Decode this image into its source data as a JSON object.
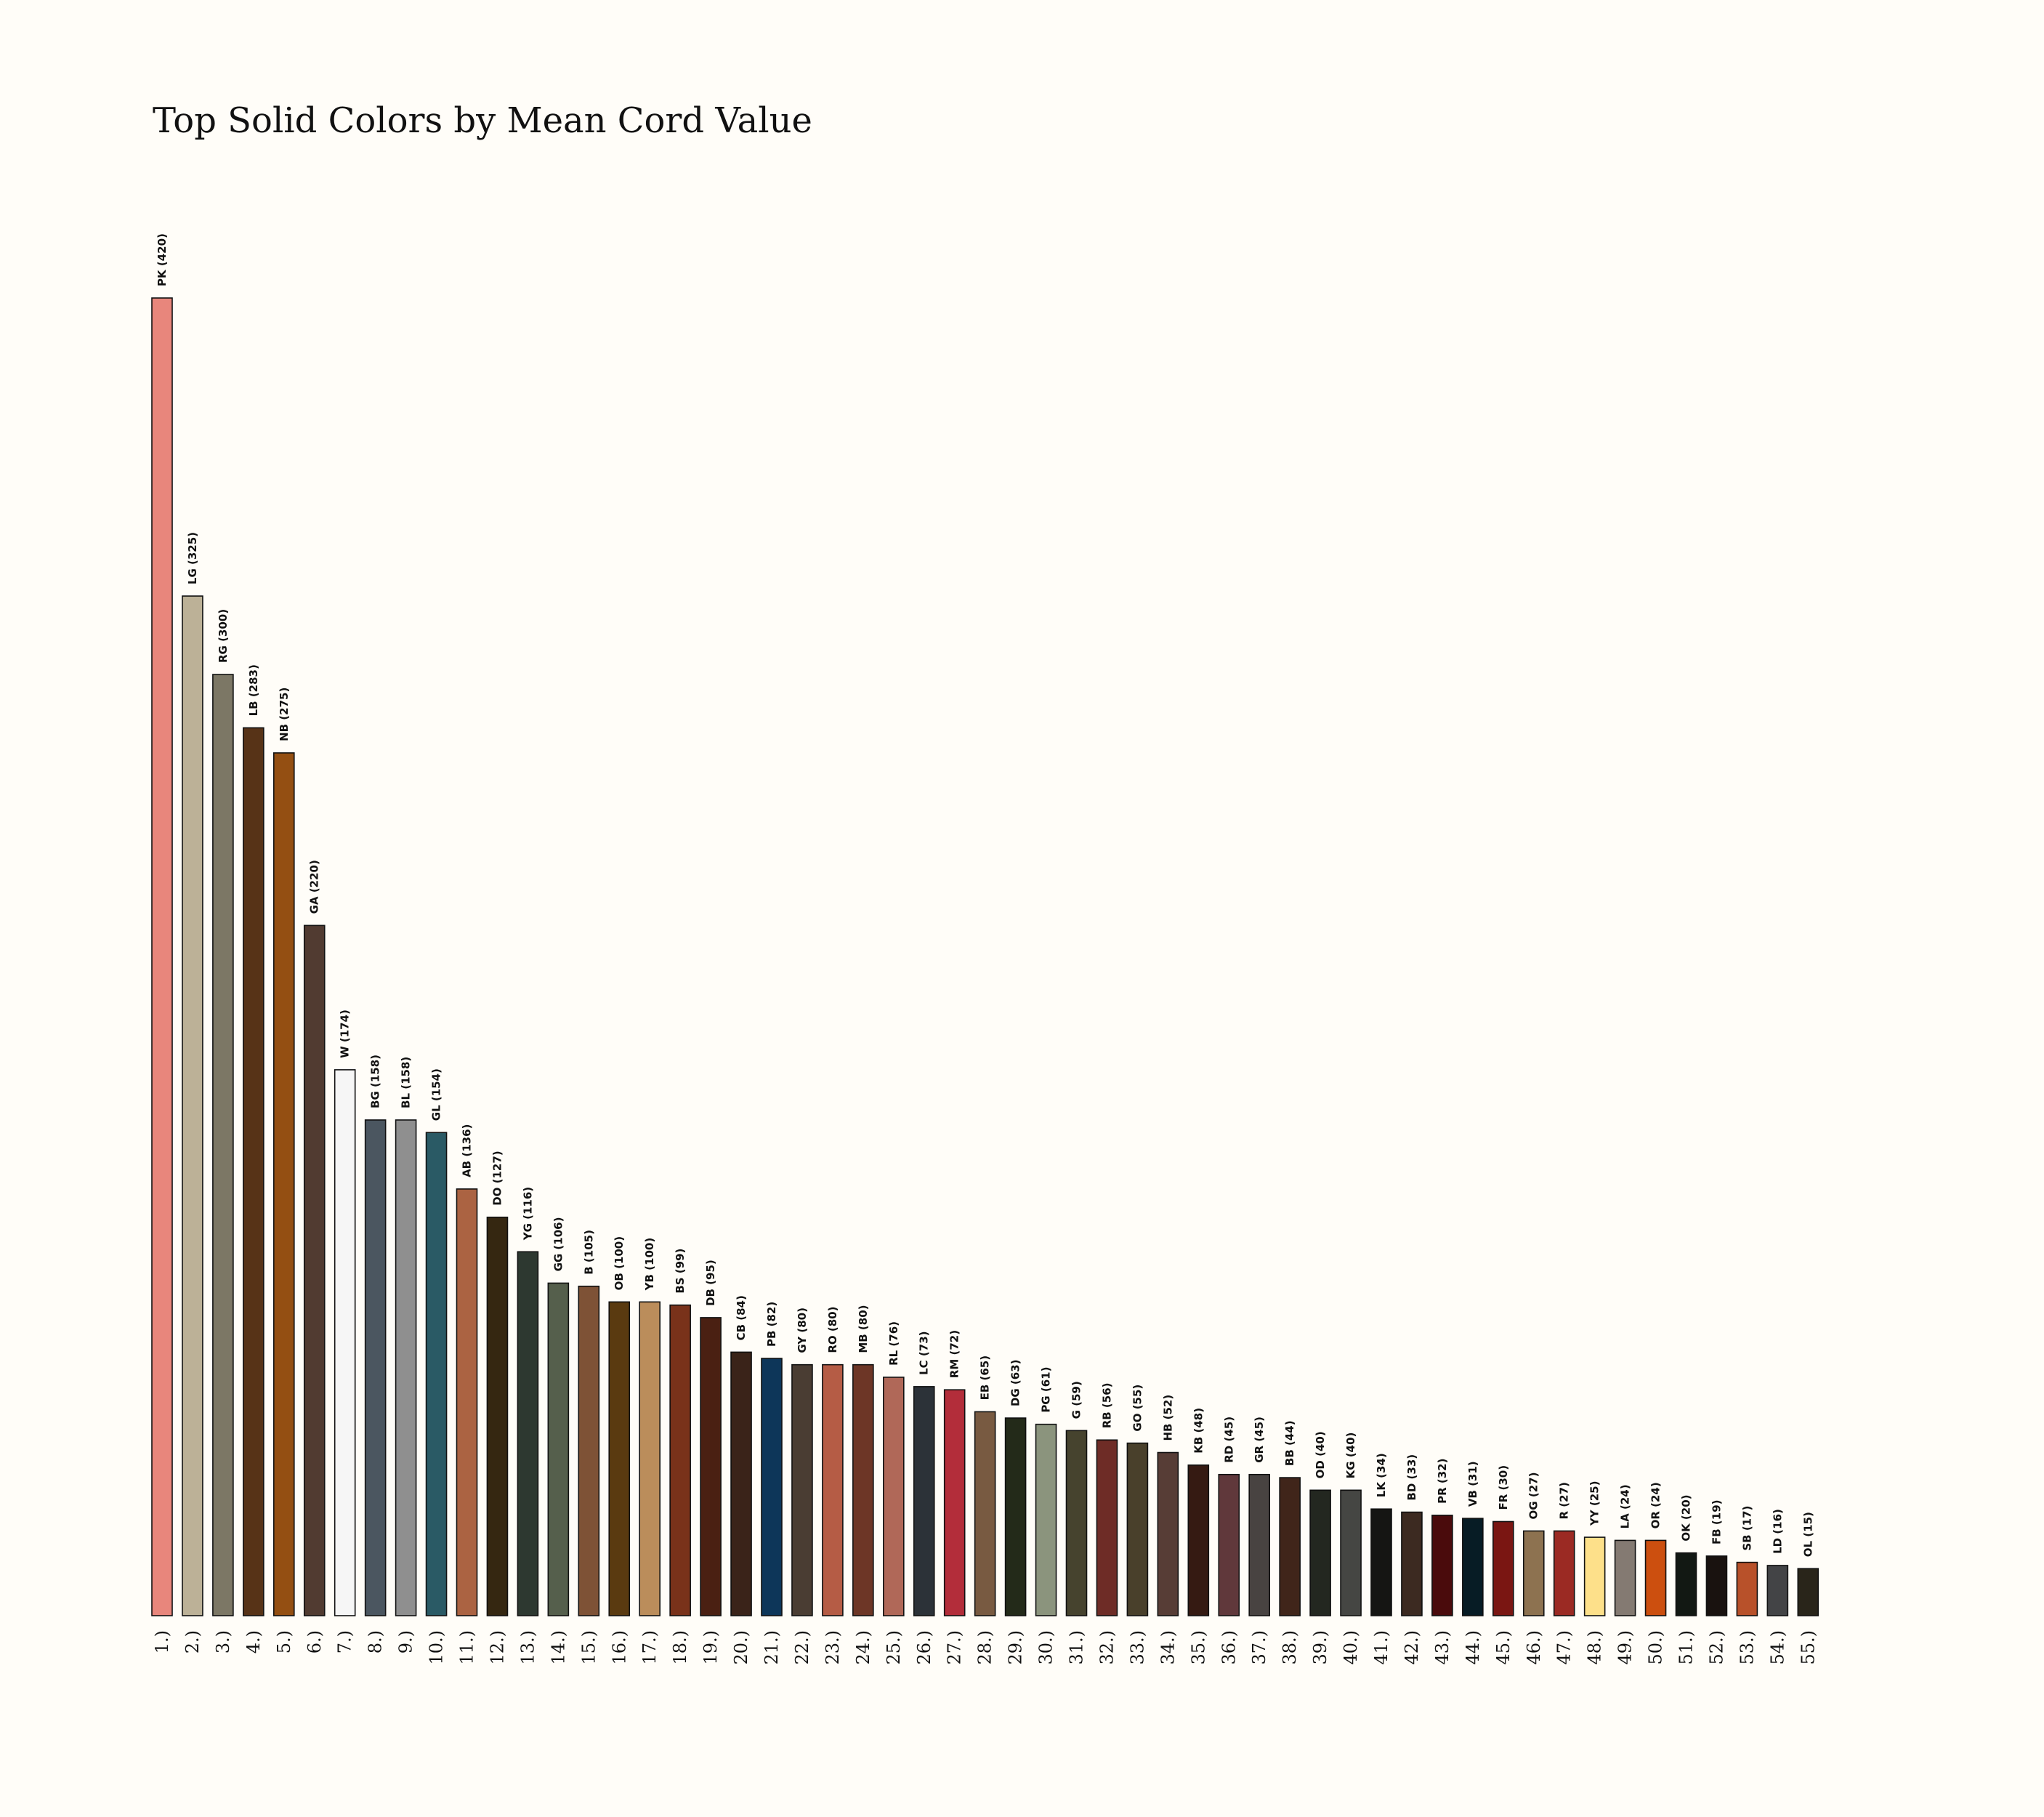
{
  "chart_data": {
    "type": "bar",
    "title": "Top Solid Colors by Mean Cord Value",
    "xlabel": "",
    "ylabel": "",
    "ylim": [
      0,
      420
    ],
    "grid": false,
    "legend": "none",
    "categories": [
      "1.)",
      "2.)",
      "3.)",
      "4.)",
      "5.)",
      "6.)",
      "7.)",
      "8.)",
      "9.)",
      "10.)",
      "11.)",
      "12.)",
      "13.)",
      "14.)",
      "15.)",
      "16.)",
      "17.)",
      "18.)",
      "19.)",
      "20.)",
      "21.)",
      "22.)",
      "23.)",
      "24.)",
      "25.)",
      "26.)",
      "27.)",
      "28.)",
      "29.)",
      "30.)",
      "31.)",
      "32.)",
      "33.)",
      "34.)",
      "35.)",
      "36.)",
      "37.)",
      "38.)",
      "39.)",
      "40.)",
      "41.)",
      "42.)",
      "43.)",
      "44.)",
      "45.)",
      "46.)",
      "47.)",
      "48.)",
      "49.)",
      "50.)",
      "51.)",
      "52.)",
      "53.)",
      "54.)",
      "55.)"
    ],
    "bar_labels": [
      "PK (420)",
      "LG (325)",
      "RG (300)",
      "LB (283)",
      "NB (275)",
      "GA (220)",
      "W (174)",
      "BG (158)",
      "BL (158)",
      "GL (154)",
      "AB (136)",
      "DO (127)",
      "YG (116)",
      "GG (106)",
      "B (105)",
      "OB (100)",
      "YB (100)",
      "BS (99)",
      "DB (95)",
      "CB (84)",
      "PB (82)",
      "GY (80)",
      "RO (80)",
      "MB (80)",
      "RL (76)",
      "LC (73)",
      "RM (72)",
      "EB (65)",
      "DG (63)",
      "PG (61)",
      "G (59)",
      "RB (56)",
      "GO (55)",
      "HB (52)",
      "KB (48)",
      "RD (45)",
      "GR (45)",
      "BB (44)",
      "OD (40)",
      "KG (40)",
      "LK (34)",
      "BD (33)",
      "PR (32)",
      "VB (31)",
      "FR (30)",
      "OG (27)",
      "R (27)",
      "YY (25)",
      "LA (24)",
      "OR (24)",
      "OK (20)",
      "FB (19)",
      "SB (17)",
      "LD (16)",
      "OL (15)"
    ],
    "values": [
      420,
      325,
      300,
      283,
      275,
      220,
      174,
      158,
      158,
      154,
      136,
      127,
      116,
      106,
      105,
      100,
      100,
      99,
      95,
      84,
      82,
      80,
      80,
      80,
      76,
      73,
      72,
      65,
      63,
      61,
      59,
      56,
      55,
      52,
      48,
      45,
      45,
      44,
      40,
      40,
      34,
      33,
      32,
      31,
      30,
      27,
      27,
      25,
      24,
      24,
      20,
      19,
      17,
      16,
      15
    ],
    "colors": [
      "#e8867c",
      "#bcb197",
      "#7c7765",
      "#573317",
      "#944f12",
      "#513b31",
      "#f6f6f6",
      "#4b5660",
      "#8f8f8f",
      "#2a5a65",
      "#ab6342",
      "#352711",
      "#2d3830",
      "#555f4c",
      "#7e5236",
      "#5a3a10",
      "#bb8d5b",
      "#79321a",
      "#4a2012",
      "#3a2319",
      "#0d3659",
      "#4a3d33",
      "#b55c45",
      "#6d3626",
      "#b06858",
      "#2c3238",
      "#b32d3a",
      "#785a41",
      "#232a19",
      "#8b947d",
      "#46432e",
      "#6e2c26",
      "#49402b",
      "#573d36",
      "#351a12",
      "#60383b",
      "#484341",
      "#40251a",
      "#232720",
      "#454643",
      "#151513",
      "#3c2a21",
      "#4a0b0c",
      "#071c25",
      "#7a1612",
      "#8d7250",
      "#9b2a23",
      "#fde08a",
      "#847a72",
      "#cc4f0f",
      "#121813",
      "#19120f",
      "#b8512a",
      "#434446",
      "#29251a"
    ]
  }
}
